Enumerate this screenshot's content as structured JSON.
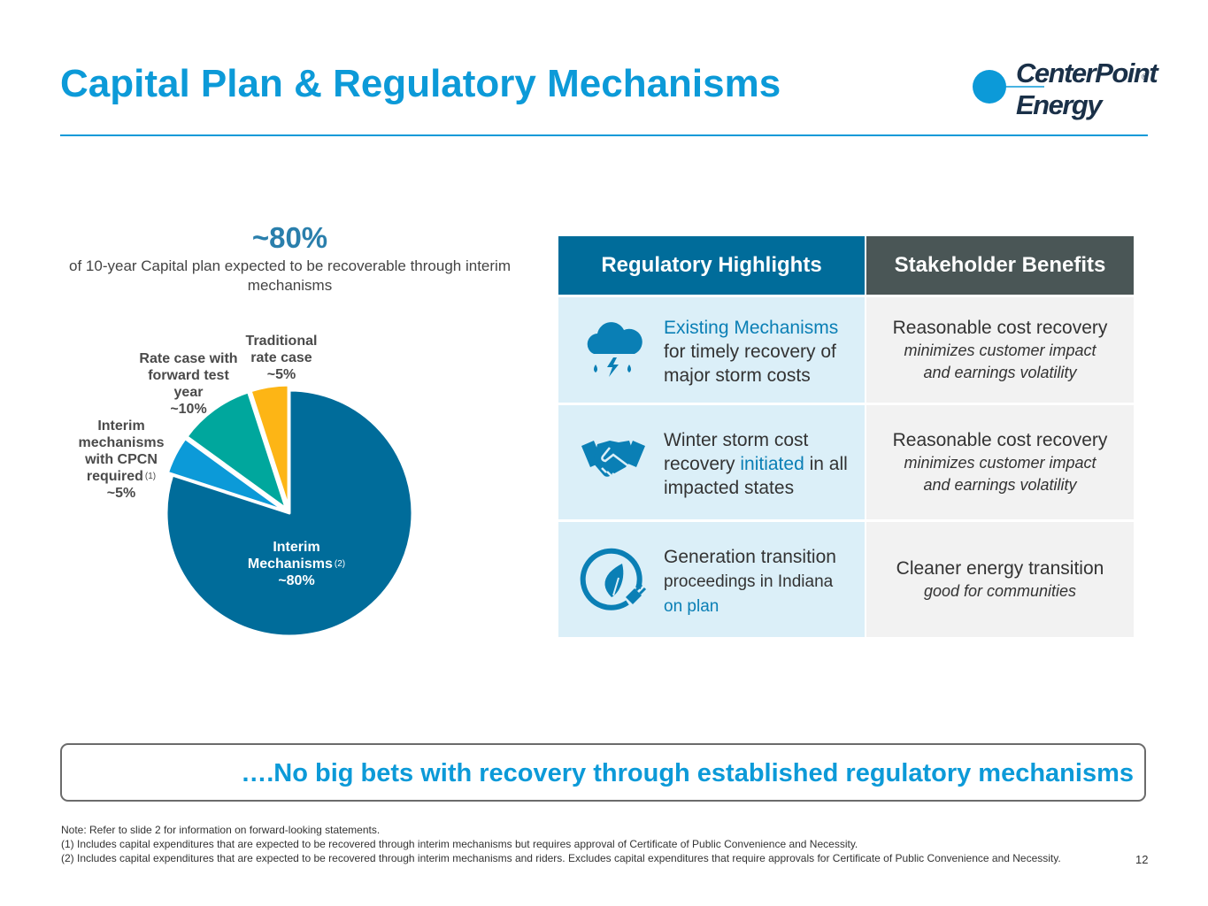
{
  "header": {
    "title": "Capital Plan & Regulatory Mechanisms",
    "logo_line1": "CenterPoint",
    "logo_line2": "Energy",
    "logo_mark": "®"
  },
  "callout": {
    "value": "~80%",
    "caption": "of 10-year Capital plan expected to be recoverable through interim mechanisms"
  },
  "chart_data": {
    "type": "pie",
    "title": "",
    "slices": [
      {
        "label": "Interim Mechanisms",
        "note": "(2)",
        "value": 80,
        "display": "~80%",
        "color": "#006c9a"
      },
      {
        "label": "Interim mechanisms with CPCN required",
        "note": "(1)",
        "value": 5,
        "display": "~5%",
        "color": "#0c9ad8"
      },
      {
        "label": "Rate case with forward test year",
        "value": 10,
        "display": "~10%",
        "color": "#00a79d"
      },
      {
        "label": "Traditional rate case",
        "value": 5,
        "display": "~5%",
        "color": "#fdb515"
      }
    ],
    "label_lines": {
      "interim": [
        "Interim",
        "Mechanisms",
        "~80%"
      ],
      "cpcn": [
        "Interim",
        "mechanisms",
        "with CPCN",
        "required",
        "~5%"
      ],
      "forward": [
        "Rate case with",
        "forward test",
        "year",
        "~10%"
      ],
      "traditional": [
        "Traditional",
        "rate case",
        "~5%"
      ]
    }
  },
  "table": {
    "headers": [
      "Regulatory Highlights",
      "Stakeholder Benefits"
    ],
    "rows": [
      {
        "icon": "storm-cloud-icon",
        "highlight_blue": "Existing Mechanisms",
        "highlight_rest_1": "for timely recovery of",
        "highlight_rest_2": "major storm costs",
        "benefit": "Reasonable cost recovery",
        "benefit_italic_1": "minimizes customer impact",
        "benefit_italic_2": "and earnings volatility"
      },
      {
        "icon": "handshake-icon",
        "highlight_1": "Winter storm cost",
        "highlight_2a": "recovery ",
        "highlight_2_blue": "initiated",
        "highlight_2b": " in all",
        "highlight_3": "impacted states",
        "benefit": "Reasonable cost recovery",
        "benefit_italic_1": "minimizes customer impact",
        "benefit_italic_2": "and earnings volatility"
      },
      {
        "icon": "leaf-plug-icon",
        "highlight_1": "Generation transition",
        "highlight_2": "proceedings in Indiana",
        "highlight_blue": "on plan",
        "benefit": "Cleaner energy transition",
        "benefit_italic_1": "good for communities"
      }
    ]
  },
  "banner": "….No big bets with recovery through established regulatory mechanisms",
  "notes": [
    "Note: Refer to slide 2 for information on forward-looking statements.",
    "(1) Includes capital expenditures that are expected to be recovered through interim mechanisms but requires approval of Certificate of Public Convenience and Necessity.",
    "(2) Includes capital expenditures that are expected to be recovered through interim mechanisms and riders. Excludes capital expenditures that require approvals for Certificate of Public Convenience and Necessity."
  ],
  "page_number": "12",
  "colors": {
    "accent": "#0c9ad8",
    "dark_blue": "#006c9a",
    "teal": "#00a79d",
    "gold": "#fdb515",
    "header_gray": "#4a5656"
  }
}
